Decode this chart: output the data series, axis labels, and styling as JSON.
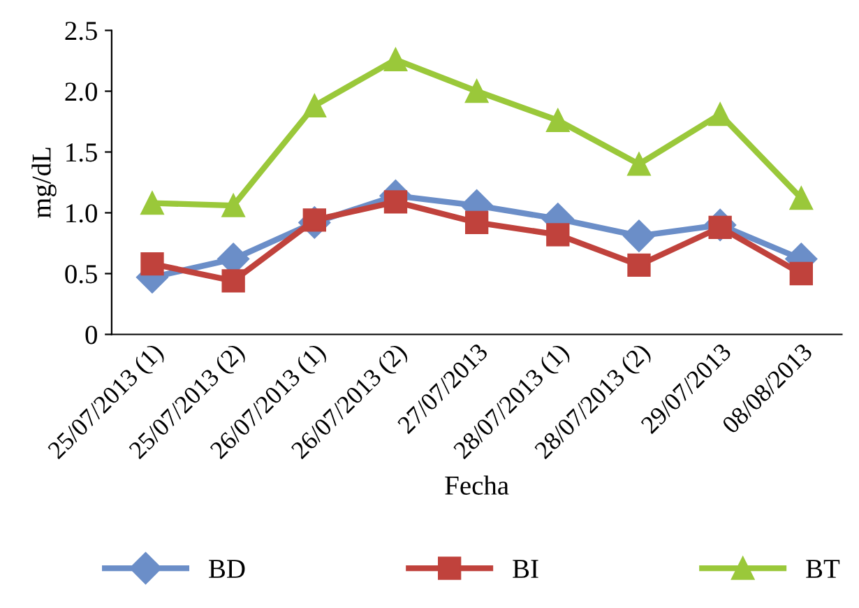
{
  "chart_data": {
    "type": "line",
    "xlabel": "Fecha",
    "ylabel": "mg/dL",
    "categories": [
      "25/07/2013 (1)",
      "25/07/2013 (2)",
      "26/07/2013 (1)",
      "26/07/2013 (2)",
      "27/07/2013",
      "28/07/2013 (1)",
      "28/07/2013 (2)",
      "29/07/2013",
      "08/08/2013"
    ],
    "series": [
      {
        "name": "BD",
        "color": "#6b8ec8",
        "marker": "diamond",
        "values": [
          0.47,
          0.62,
          0.92,
          1.14,
          1.06,
          0.95,
          0.81,
          0.9,
          0.62
        ]
      },
      {
        "name": "BI",
        "color": "#c0423c",
        "marker": "square",
        "values": [
          0.58,
          0.44,
          0.94,
          1.09,
          0.92,
          0.82,
          0.57,
          0.88,
          0.5
        ]
      },
      {
        "name": "BT",
        "color": "#9ac83a",
        "marker": "triangle",
        "values": [
          1.08,
          1.06,
          1.88,
          2.26,
          2.0,
          1.76,
          1.4,
          1.81,
          1.12
        ]
      }
    ],
    "ylim": [
      0,
      2.5
    ],
    "yticks": [
      {
        "value": 0,
        "label": "0"
      },
      {
        "value": 0.5,
        "label": "0.5"
      },
      {
        "value": 1.0,
        "label": "1.0"
      },
      {
        "value": 1.5,
        "label": "1.5"
      },
      {
        "value": 2.0,
        "label": "2.0"
      },
      {
        "value": 2.5,
        "label": "2.5"
      }
    ],
    "grid": false,
    "legend": "bottom"
  }
}
